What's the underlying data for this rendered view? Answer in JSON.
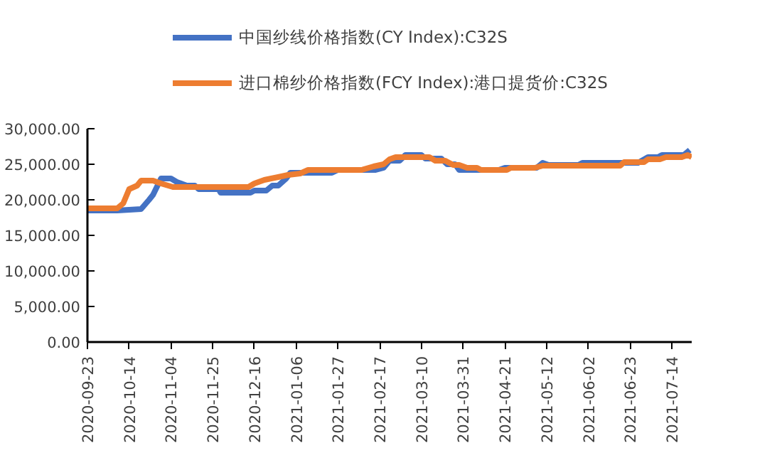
{
  "chart_data": {
    "type": "line",
    "xlim": [
      "2020-09-23",
      "2021-07-24"
    ],
    "xticks": [
      "2020-09-23",
      "2020-10-14",
      "2020-11-04",
      "2020-11-25",
      "2020-12-16",
      "2021-01-06",
      "2021-01-27",
      "2021-02-17",
      "2021-03-10",
      "2021-03-31",
      "2021-04-21",
      "2021-05-12",
      "2021-06-02",
      "2021-06-23",
      "2021-07-14"
    ],
    "ylim": [
      0,
      30000
    ],
    "yticks": [
      {
        "value": 0,
        "label": "0.00"
      },
      {
        "value": 5000,
        "label": "5,000.00"
      },
      {
        "value": 10000,
        "label": "10,000.00"
      },
      {
        "value": 15000,
        "label": "15,000.00"
      },
      {
        "value": 20000,
        "label": "20,000.00"
      },
      {
        "value": 25000,
        "label": "25,000.00"
      },
      {
        "value": 30000,
        "label": "30,000.00"
      }
    ],
    "grid": false,
    "legend": "top",
    "line_style": "solid",
    "series": [
      {
        "name": "中国纱线价格指数(CY Index):C32S",
        "color": "#4472c4",
        "x": [
          "2020-09-23",
          "2020-10-08",
          "2020-10-20",
          "2020-10-24",
          "2020-10-26",
          "2020-10-30",
          "2020-11-04",
          "2020-11-07",
          "2020-11-12",
          "2020-11-16",
          "2020-11-18",
          "2020-11-28",
          "2020-11-29",
          "2020-12-14",
          "2020-12-16",
          "2020-12-22",
          "2020-12-25",
          "2020-12-28",
          "2021-01-01",
          "2021-01-03",
          "2021-01-24",
          "2021-01-27",
          "2021-02-15",
          "2021-02-19",
          "2021-02-22",
          "2021-02-27",
          "2021-03-02",
          "2021-03-10",
          "2021-03-12",
          "2021-03-20",
          "2021-03-23",
          "2021-03-27",
          "2021-03-29",
          "2021-04-18",
          "2021-04-21",
          "2021-05-07",
          "2021-05-10",
          "2021-05-13",
          "2021-05-28",
          "2021-05-30",
          "2021-06-27",
          "2021-07-02",
          "2021-07-07",
          "2021-07-09",
          "2021-07-20",
          "2021-07-23"
        ],
        "values": [
          18500,
          18500,
          18700,
          20000,
          20700,
          23000,
          23000,
          22500,
          22000,
          22000,
          21500,
          21500,
          21000,
          21000,
          21300,
          21300,
          22000,
          22000,
          23000,
          23800,
          23800,
          24200,
          24200,
          24500,
          25500,
          25500,
          26300,
          26300,
          25800,
          25800,
          25000,
          25000,
          24200,
          24200,
          24500,
          24500,
          25200,
          24900,
          24900,
          25200,
          25200,
          26000,
          26000,
          26300,
          26300,
          27000
        ]
      },
      {
        "name": "进口棉纱价格指数(FCY Index):港口提货价:C32S",
        "color": "#ed7d31",
        "x": [
          "2020-09-23",
          "2020-10-08",
          "2020-10-11",
          "2020-10-14",
          "2020-10-18",
          "2020-10-20",
          "2020-10-26",
          "2020-10-30",
          "2020-11-05",
          "2020-12-13",
          "2020-12-16",
          "2020-12-21",
          "2020-12-28",
          "2021-01-02",
          "2021-01-08",
          "2021-01-12",
          "2021-02-08",
          "2021-02-14",
          "2021-02-19",
          "2021-02-22",
          "2021-02-25",
          "2021-03-14",
          "2021-03-17",
          "2021-03-22",
          "2021-03-26",
          "2021-03-29",
          "2021-04-02",
          "2021-04-07",
          "2021-04-09",
          "2021-04-22",
          "2021-04-24",
          "2021-05-06",
          "2021-05-10",
          "2021-06-18",
          "2021-06-20",
          "2021-06-30",
          "2021-07-02",
          "2021-07-08",
          "2021-07-11",
          "2021-07-19",
          "2021-07-22",
          "2021-07-24"
        ],
        "values": [
          18800,
          18800,
          19500,
          21500,
          22000,
          22700,
          22700,
          22300,
          21800,
          21800,
          22300,
          22800,
          23200,
          23500,
          23700,
          24200,
          24200,
          24700,
          25000,
          25700,
          26000,
          26000,
          25500,
          25500,
          24900,
          24900,
          24500,
          24500,
          24200,
          24200,
          24500,
          24500,
          24800,
          24800,
          25300,
          25300,
          25700,
          25700,
          26000,
          26000,
          26300,
          26000
        ]
      }
    ]
  }
}
